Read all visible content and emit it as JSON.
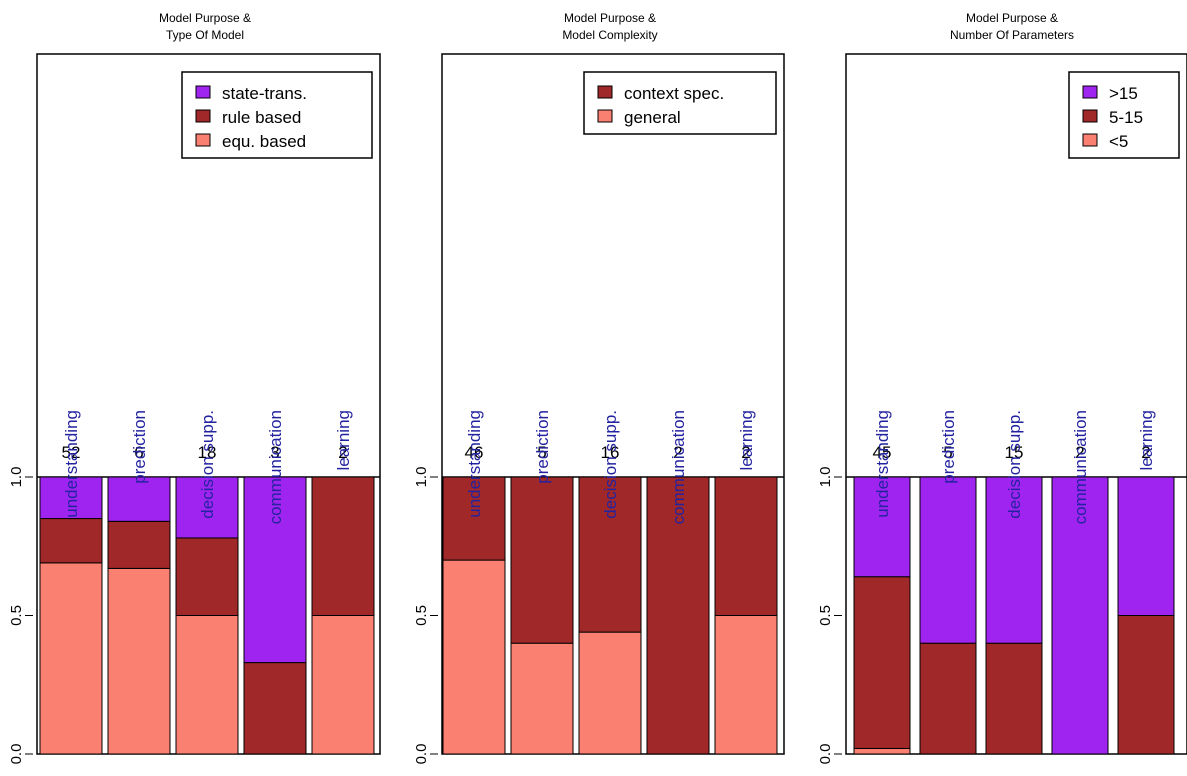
{
  "colors": {
    "frame": "#000000",
    "category_label": "#2323a0",
    "text": "#000000",
    "series": {
      "purple": "#a024f0",
      "darkred": "#a02828",
      "salmon": "#fa8072"
    }
  },
  "chart_data": [
    {
      "type": "bar",
      "stacked": true,
      "normalized": true,
      "title": [
        "Model Purpose  &",
        "Type Of Model"
      ],
      "categories": [
        "understanding",
        "prediction",
        "decision supp.",
        "communication",
        "learning"
      ],
      "counts": [
        "52",
        "6",
        "18",
        "3",
        "2"
      ],
      "ylim": [
        0,
        1
      ],
      "yticks": [
        "0.0",
        "0.5",
        "1.0"
      ],
      "legend_position": "top-right",
      "series": [
        {
          "name": "equ. based",
          "color": "#fa8072",
          "values": [
            0.69,
            0.67,
            0.5,
            0.0,
            0.5
          ]
        },
        {
          "name": "rule based",
          "color": "#a02828",
          "values": [
            0.16,
            0.17,
            0.28,
            0.33,
            0.5
          ]
        },
        {
          "name": "state-trans.",
          "color": "#a024f0",
          "values": [
            0.15,
            0.16,
            0.22,
            0.67,
            0.0
          ]
        }
      ]
    },
    {
      "type": "bar",
      "stacked": true,
      "normalized": true,
      "title": [
        "Model Purpose  &",
        "Model Complexity"
      ],
      "categories": [
        "understanding",
        "prediction",
        "decision supp.",
        "communication",
        "learning"
      ],
      "counts": [
        "46",
        "5",
        "16",
        "2",
        "2"
      ],
      "ylim": [
        0,
        1
      ],
      "yticks": [
        "0.0",
        "0.5",
        "1.0"
      ],
      "legend_position": "top-right",
      "series": [
        {
          "name": "general",
          "color": "#fa8072",
          "values": [
            0.7,
            0.4,
            0.44,
            0.0,
            0.5
          ]
        },
        {
          "name": "context spec.",
          "color": "#a02828",
          "values": [
            0.3,
            0.6,
            0.56,
            1.0,
            0.5
          ]
        }
      ]
    },
    {
      "type": "bar",
      "stacked": true,
      "normalized": true,
      "title": [
        "Model Purpose  &",
        "Number Of Parameters"
      ],
      "categories": [
        "understanding",
        "prediction",
        "decision supp.",
        "communication",
        "learning"
      ],
      "counts": [
        "45",
        "5",
        "15",
        "2",
        "2"
      ],
      "ylim": [
        0,
        1
      ],
      "yticks": [
        "0.0",
        "0.5",
        "1.0"
      ],
      "legend_position": "top-right",
      "series": [
        {
          "name": "<5",
          "color": "#fa8072",
          "values": [
            0.02,
            0.0,
            0.0,
            0.0,
            0.0
          ]
        },
        {
          "name": "5-15",
          "color": "#a02828",
          "values": [
            0.62,
            0.4,
            0.4,
            0.0,
            0.5
          ]
        },
        {
          "name": ">15",
          "color": "#a024f0",
          "values": [
            0.36,
            0.6,
            0.6,
            1.0,
            0.5
          ]
        }
      ]
    }
  ]
}
